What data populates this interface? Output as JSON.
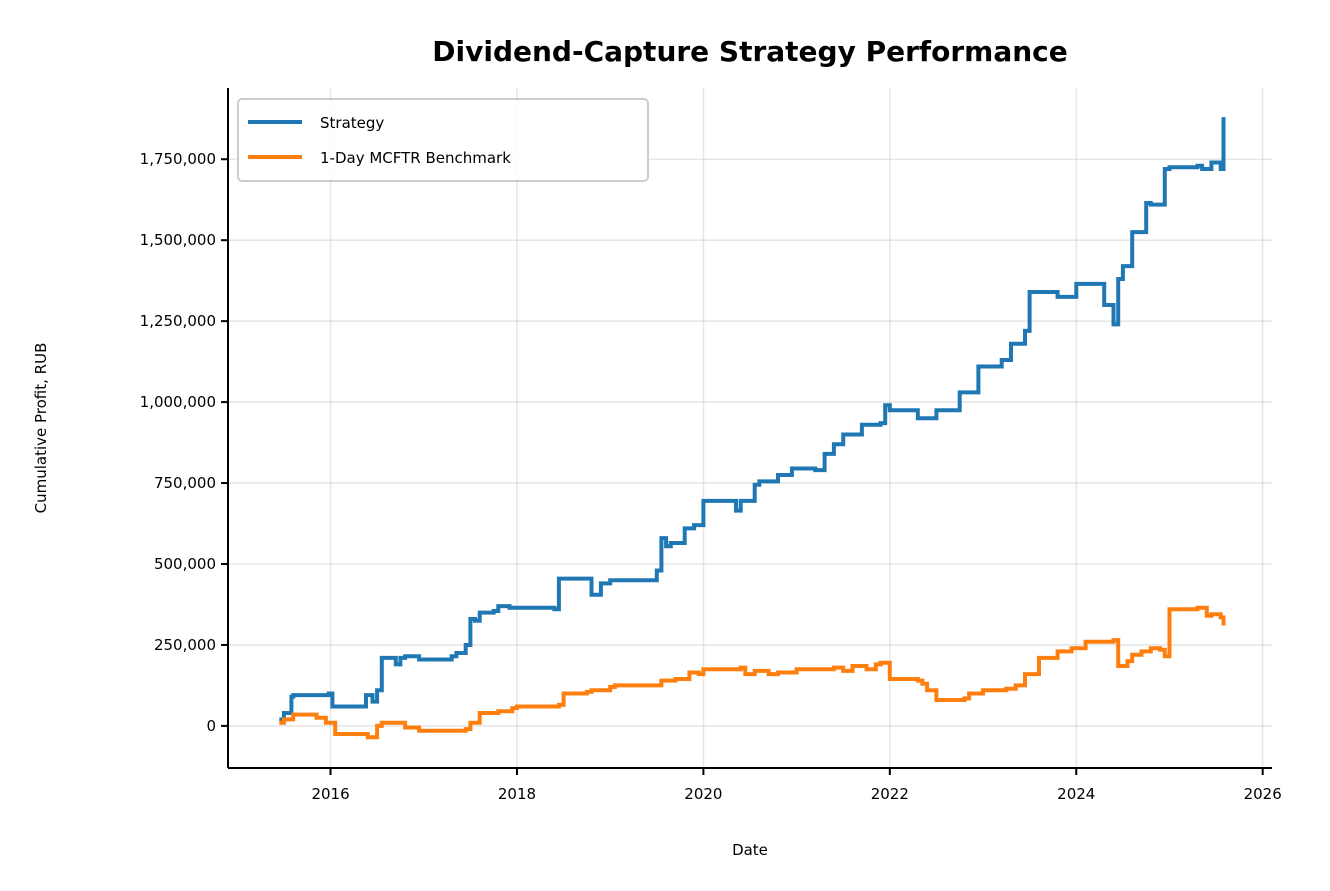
{
  "chart_data": {
    "type": "line",
    "title": "Dividend-Capture Strategy Performance",
    "xlabel": "Date",
    "ylabel": "Cumulative Profit, RUB",
    "x_ticks": [
      2016,
      2018,
      2020,
      2022,
      2024,
      2026
    ],
    "x_tick_labels": [
      "2016",
      "2018",
      "2020",
      "2022",
      "2024",
      "2026"
    ],
    "y_ticks": [
      0,
      250000,
      500000,
      750000,
      1000000,
      1250000,
      1500000,
      1750000
    ],
    "y_tick_labels": [
      "0",
      "250,000",
      "500,000",
      "750,000",
      "1,000,000",
      "1,250,000",
      "1,500,000",
      "1,750,000"
    ],
    "xlim": [
      2014.9,
      2026.1
    ],
    "ylim": [
      -130000,
      1970000
    ],
    "grid": true,
    "legend_position": "upper-left",
    "colors": {
      "strategy": "#1f77b4",
      "benchmark": "#ff7f0e"
    },
    "series": [
      {
        "name": "Strategy",
        "step": true,
        "x": [
          2015.45,
          2015.5,
          2015.58,
          2015.6,
          2015.98,
          2016.02,
          2016.35,
          2016.38,
          2016.45,
          2016.5,
          2016.55,
          2016.7,
          2016.75,
          2016.8,
          2016.95,
          2017.3,
          2017.35,
          2017.45,
          2017.5,
          2017.55,
          2017.6,
          2017.75,
          2017.8,
          2017.92,
          2018.0,
          2018.4,
          2018.45,
          2018.55,
          2018.8,
          2018.9,
          2019.0,
          2019.5,
          2019.55,
          2019.6,
          2019.65,
          2019.8,
          2019.9,
          2020.0,
          2020.35,
          2020.4,
          2020.55,
          2020.6,
          2020.8,
          2020.95,
          2021.2,
          2021.3,
          2021.4,
          2021.5,
          2021.7,
          2021.9,
          2021.95,
          2022.0,
          2022.3,
          2022.5,
          2022.7,
          2022.75,
          2022.95,
          2023.2,
          2023.3,
          2023.45,
          2023.5,
          2023.6,
          2023.8,
          2024.0,
          2024.2,
          2024.3,
          2024.4,
          2024.45,
          2024.5,
          2024.6,
          2024.75,
          2024.8,
          2024.95,
          2025.0,
          2025.3,
          2025.35,
          2025.45,
          2025.55,
          2025.58
        ],
        "y": [
          20000,
          40000,
          90000,
          95000,
          100000,
          60000,
          60000,
          95000,
          75000,
          110000,
          210000,
          190000,
          210000,
          215000,
          205000,
          215000,
          225000,
          250000,
          330000,
          325000,
          350000,
          355000,
          370000,
          365000,
          365000,
          360000,
          455000,
          455000,
          405000,
          440000,
          450000,
          480000,
          580000,
          555000,
          565000,
          610000,
          620000,
          695000,
          665000,
          695000,
          745000,
          755000,
          775000,
          795000,
          790000,
          840000,
          870000,
          900000,
          930000,
          935000,
          990000,
          975000,
          950000,
          975000,
          975000,
          1030000,
          1110000,
          1130000,
          1180000,
          1220000,
          1340000,
          1340000,
          1325000,
          1365000,
          1365000,
          1300000,
          1240000,
          1380000,
          1420000,
          1525000,
          1615000,
          1610000,
          1720000,
          1725000,
          1730000,
          1720000,
          1740000,
          1720000,
          1880000
        ]
      },
      {
        "name": "1-Day MCFTR Benchmark",
        "step": true,
        "x": [
          2015.45,
          2015.5,
          2015.6,
          2015.85,
          2015.95,
          2016.05,
          2016.4,
          2016.5,
          2016.55,
          2016.8,
          2016.95,
          2017.45,
          2017.5,
          2017.6,
          2017.8,
          2017.95,
          2018.0,
          2018.45,
          2018.5,
          2018.75,
          2018.8,
          2019.0,
          2019.05,
          2019.5,
          2019.55,
          2019.7,
          2019.85,
          2019.95,
          2020.0,
          2020.4,
          2020.45,
          2020.55,
          2020.7,
          2020.8,
          2021.0,
          2021.4,
          2021.5,
          2021.6,
          2021.75,
          2021.85,
          2021.9,
          2022.0,
          2022.3,
          2022.35,
          2022.4,
          2022.5,
          2022.8,
          2022.85,
          2023.0,
          2023.25,
          2023.35,
          2023.45,
          2023.6,
          2023.8,
          2023.95,
          2024.1,
          2024.4,
          2024.45,
          2024.55,
          2024.6,
          2024.7,
          2024.8,
          2024.9,
          2024.95,
          2025.0,
          2025.3,
          2025.4,
          2025.45,
          2025.55,
          2025.58
        ],
        "y": [
          10000,
          20000,
          35000,
          25000,
          10000,
          -25000,
          -35000,
          0,
          10000,
          -5000,
          -15000,
          -10000,
          10000,
          40000,
          45000,
          55000,
          60000,
          65000,
          100000,
          105000,
          110000,
          120000,
          125000,
          125000,
          140000,
          145000,
          165000,
          160000,
          175000,
          180000,
          160000,
          170000,
          160000,
          165000,
          175000,
          180000,
          170000,
          185000,
          175000,
          190000,
          195000,
          145000,
          140000,
          130000,
          110000,
          80000,
          85000,
          100000,
          110000,
          115000,
          125000,
          160000,
          210000,
          230000,
          240000,
          260000,
          265000,
          185000,
          200000,
          220000,
          230000,
          240000,
          235000,
          215000,
          360000,
          365000,
          340000,
          345000,
          335000,
          310000
        ]
      }
    ]
  }
}
